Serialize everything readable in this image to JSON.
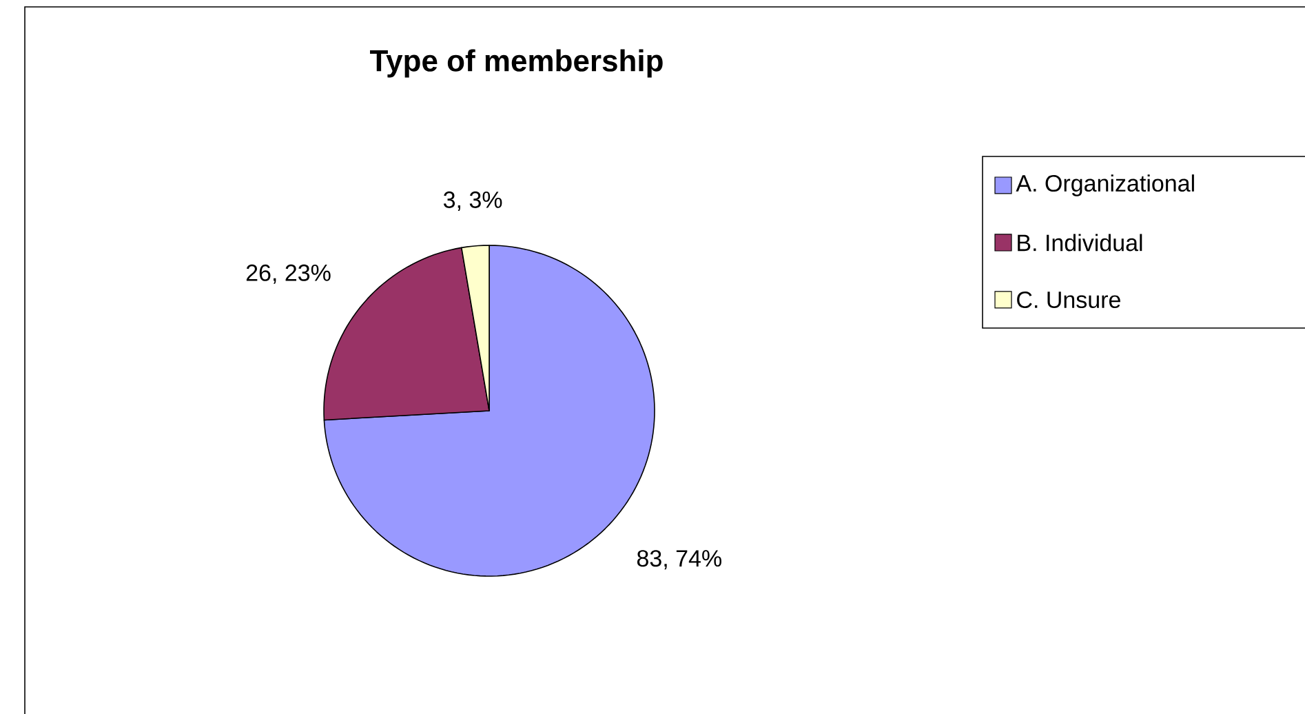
{
  "chart_data": {
    "type": "pie",
    "title": "Type of membership",
    "categories": [
      "A. Organizational",
      "B. Individual",
      "C. Unsure"
    ],
    "values": [
      83,
      26,
      3
    ],
    "colors": [
      "#9999ff",
      "#993366",
      "#ffffcc"
    ],
    "value_labels": [
      "83, 74%",
      "26, 23%",
      "3, 3%"
    ],
    "legend": "right"
  }
}
